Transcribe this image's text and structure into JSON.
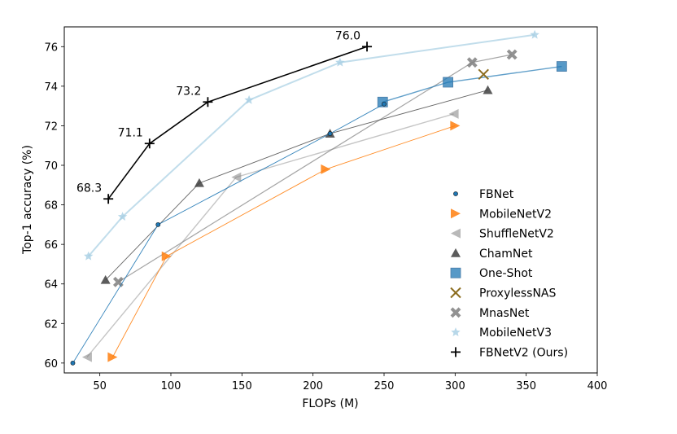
{
  "chart_data": {
    "type": "line",
    "title": "",
    "xlabel": "FLOPs (M)",
    "ylabel": "Top-1 accuracy (%)",
    "xlim": [
      25,
      400
    ],
    "ylim": [
      59.5,
      77
    ],
    "xticks": [
      50,
      100,
      150,
      200,
      250,
      300,
      350,
      400
    ],
    "yticks": [
      60,
      62,
      64,
      66,
      68,
      70,
      72,
      74,
      76
    ],
    "legend_position": "lower-right",
    "series": [
      {
        "name": "FBNet",
        "color": "#1f77b4",
        "marker": "circle",
        "x": [
          31,
          91,
          212,
          250
        ],
        "y": [
          60.0,
          67.0,
          71.6,
          73.1
        ]
      },
      {
        "name": "MobileNetV2",
        "color": "#ff7f0e",
        "marker": "triangle-right",
        "x": [
          59,
          97,
          209,
          300
        ],
        "y": [
          60.3,
          65.4,
          69.8,
          72.0
        ]
      },
      {
        "name": "ShuffleNetV2",
        "color": "#7f7f7f",
        "marker": "triangle-left",
        "x": [
          41,
          146,
          299
        ],
        "y": [
          60.3,
          69.4,
          72.6
        ]
      },
      {
        "name": "ChamNet",
        "color": "#404040",
        "marker": "triangle-up",
        "x": [
          54,
          120,
          212,
          323
        ],
        "y": [
          64.2,
          69.1,
          71.6,
          73.8
        ]
      },
      {
        "name": "One-Shot",
        "color": "#1f77b4",
        "marker": "square",
        "x": [
          249,
          295,
          375
        ],
        "y": [
          73.2,
          74.2,
          75.0
        ]
      },
      {
        "name": "ProxylessNAS",
        "color": "#8c6d1f",
        "marker": "x",
        "x": [
          320
        ],
        "y": [
          74.6
        ]
      },
      {
        "name": "MnasNet",
        "color": "#7f7f7f",
        "marker": "x-thick",
        "x": [
          63,
          312,
          340
        ],
        "y": [
          64.1,
          75.2,
          75.6
        ]
      },
      {
        "name": "MobileNetV3",
        "color": "#a6cee3",
        "marker": "star",
        "x": [
          42,
          66,
          155,
          219,
          356
        ],
        "y": [
          65.4,
          67.4,
          73.3,
          75.2,
          76.6
        ]
      },
      {
        "name": "FBNetV2 (Ours)",
        "color": "#000000",
        "marker": "plus",
        "x": [
          56,
          85,
          126,
          238
        ],
        "y": [
          68.3,
          71.1,
          73.2,
          76.0
        ]
      }
    ],
    "annotations": [
      {
        "text": "68.3",
        "x": 56,
        "y": 68.3
      },
      {
        "text": "71.1",
        "x": 85,
        "y": 71.1
      },
      {
        "text": "73.2",
        "x": 126,
        "y": 73.2
      },
      {
        "text": "76.0",
        "x": 238,
        "y": 76.0
      }
    ]
  }
}
